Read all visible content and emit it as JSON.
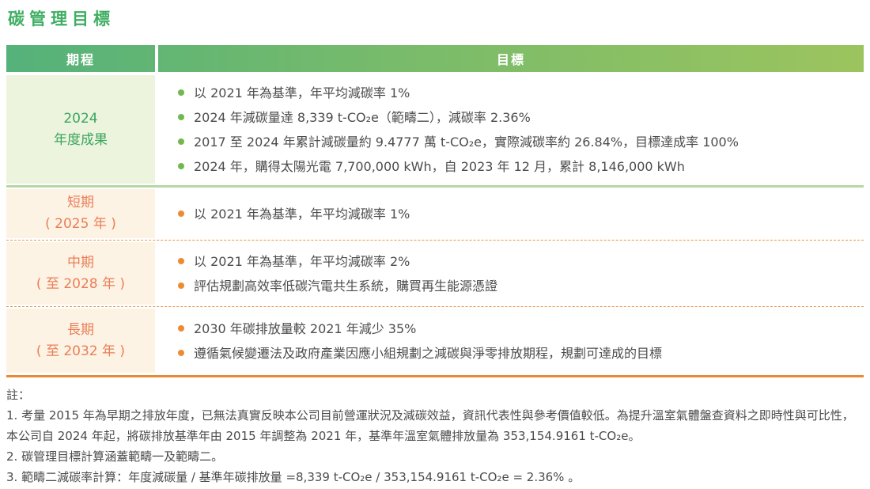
{
  "page": {
    "title": "碳管理目標"
  },
  "colors": {
    "title_green": "#3fae63",
    "header_gradient_left": "#54b27a",
    "header_gradient_right": "#9cc45e",
    "green_row_bg": "#ecf4de",
    "green_row_text": "#3ba55e",
    "green_bullet": "#72b84e",
    "green_separator": "#b4d7a4",
    "orange_row_bg": "#fdf3e5",
    "orange_row_text": "#ea7e57",
    "orange_bullet": "#ed8b33",
    "orange_border": "#e88a33",
    "body_text": "#4c4c4c"
  },
  "table": {
    "headers": {
      "period": "期程",
      "goal": "目標"
    },
    "rows": [
      {
        "theme": "green",
        "period_line1": "2024",
        "period_line2": "年度成果",
        "bullets": [
          "以 2021 年為基準，年平均減碳率 1%",
          "2024 年減碳量達 8,339 t-CO₂e（範疇二），減碳率 2.36%",
          "2017 至 2024 年累計減碳量約 9.4777 萬 t-CO₂e，實際減碳率約 26.84%，目標達成率 100%",
          "2024 年，購得太陽光電 7,700,000 kWh，自 2023 年 12 月，累計 8,146,000 kWh"
        ]
      },
      {
        "theme": "orange",
        "period_line1": "短期",
        "period_line2": "( 2025 年 )",
        "bullets": [
          "以 2021 年為基準，年平均減碳率 1%"
        ]
      },
      {
        "theme": "orange",
        "period_line1": "中期",
        "period_line2": "( 至 2028 年 )",
        "bullets": [
          "以 2021 年為基準，年平均減碳率 2%",
          "評估規劃高效率低碳汽電共生系統，購買再生能源憑證"
        ]
      },
      {
        "theme": "orange",
        "period_line1": "長期",
        "period_line2": "( 至 2032 年 )",
        "bullets": [
          "2030 年碳排放量較 2021 年減少 35%",
          "遵循氣候變遷法及政府產業因應小組規劃之減碳與淨零排放期程，規劃可達成的目標"
        ]
      }
    ]
  },
  "notes": {
    "label": "註：",
    "items": [
      "1. 考量 2015 年為早期之排放年度，已無法真實反映本公司目前營運狀況及減碳效益，資訊代表性與參考價值較低。為提升溫室氣體盤查資料之即時性與可比性，本公司自 2024 年起，將碳排放基準年由 2015 年調整為 2021 年，基準年溫室氣體排放量為 353,154.9161 t-CO₂e。",
      "2. 碳管理目標計算涵蓋範疇一及範疇二。",
      "3. 範疇二減碳率計算：年度減碳量 / 基準年碳排放量 =8,339 t-CO₂e / 353,154.9161 t-CO₂e = 2.36% 。"
    ]
  }
}
